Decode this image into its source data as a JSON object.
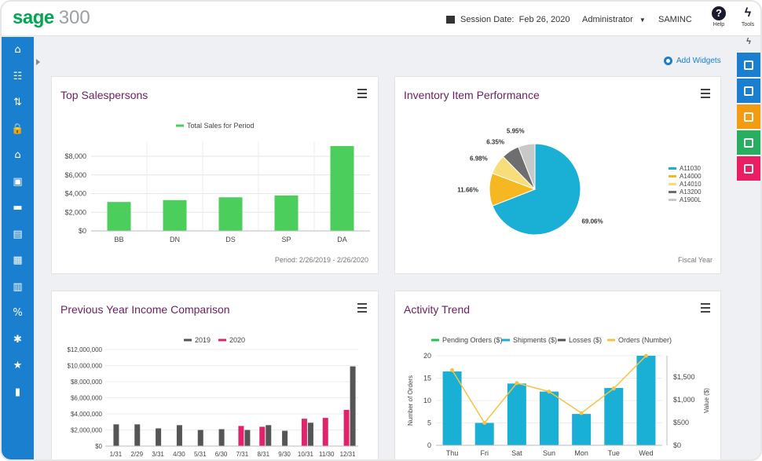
{
  "app": {
    "logo_brand": "sage",
    "logo_version": "300"
  },
  "header": {
    "session_label": "Session Date:",
    "session_date": "Feb 26, 2020",
    "user": "Administrator",
    "company": "SAMINC",
    "help_label": "Help",
    "tools_label": "Tools"
  },
  "sidebar": {
    "icons": [
      "home-icon",
      "data-entry-icon",
      "transfer-icon",
      "lock-icon",
      "bank-icon",
      "briefcase-icon",
      "folder-icon",
      "archive-icon",
      "document-icon",
      "ledger-icon",
      "percent-icon",
      "settings-star-icon",
      "star-icon",
      "bar-chart-icon"
    ]
  },
  "right_bar": {
    "buttons": [
      {
        "name": "screen-icon",
        "color": "#1b7fcf"
      },
      {
        "name": "screen-clock-icon",
        "color": "#1b7fcf"
      },
      {
        "name": "note-icon",
        "color": "#f39c12"
      },
      {
        "name": "sheet-icon",
        "color": "#27ae60"
      },
      {
        "name": "pen-icon",
        "color": "#e91e63"
      }
    ]
  },
  "add_widgets_label": "Add Widgets",
  "widgets": {
    "top_salespersons": {
      "title": "Top Salespersons",
      "footnote": "Period: 2/26/2019 - 2/26/2020"
    },
    "inventory": {
      "title": "Inventory Item Performance",
      "footnote": "Fiscal Year"
    },
    "income": {
      "title": "Previous Year Income Comparison"
    },
    "activity": {
      "title": "Activity Trend"
    }
  },
  "colors": {
    "sage_green": "#00a651",
    "brand_blue": "#1b7fcf",
    "title_purple": "#6b1f5e",
    "bar_green": "#4cce5c",
    "grey_series": "#555555",
    "pink_series": "#e0246c",
    "cyan": "#1ab0d6",
    "yellow": "#f5c342"
  },
  "chart_data": [
    {
      "type": "bar",
      "title": "",
      "legend": [
        "Total Sales for Period"
      ],
      "categories": [
        "BB",
        "DN",
        "DS",
        "SP",
        "DA"
      ],
      "series": [
        {
          "name": "Total Sales for Period",
          "values": [
            3100,
            3300,
            3600,
            3800,
            9100
          ],
          "color": "#4cce5c"
        }
      ],
      "yticks": [
        "$0",
        "$2,000",
        "$4,000",
        "$6,000",
        "$8,000"
      ],
      "ylim": [
        0,
        9600
      ],
      "legend_position": "top"
    },
    {
      "type": "pie",
      "slices": [
        {
          "label": "A11030",
          "value": 69.06,
          "text": "69.06%",
          "color": "#1ab0d6"
        },
        {
          "label": "A14000",
          "value": 11.66,
          "text": "11.66%",
          "color": "#f5b821"
        },
        {
          "label": "A14010",
          "value": 6.98,
          "text": "6.98%",
          "color": "#f9dd7a"
        },
        {
          "label": "A13200",
          "value": 6.35,
          "text": "6.35%",
          "color": "#6e6e6e"
        },
        {
          "label": "A1900L",
          "value": 5.95,
          "text": "5.95%",
          "color": "#c8c8c8"
        }
      ],
      "legend_position": "right"
    },
    {
      "type": "bar",
      "legend": [
        "2019",
        "2020"
      ],
      "categories": [
        "1/31",
        "2/29",
        "3/31",
        "4/30",
        "5/31",
        "6/30",
        "7/31",
        "8/31",
        "9/30",
        "10/31",
        "11/30",
        "12/31"
      ],
      "series": [
        {
          "name": "2019",
          "color": "#555555",
          "values": [
            2700000,
            2700000,
            2200000,
            2600000,
            2000000,
            2100000,
            2000000,
            2600000,
            1900000,
            2900000,
            null,
            9900000
          ]
        },
        {
          "name": "2020",
          "color": "#e0246c",
          "values": [
            null,
            null,
            null,
            null,
            null,
            null,
            2500000,
            2400000,
            null,
            3400000,
            3500000,
            4500000
          ]
        }
      ],
      "yticks": [
        "$0",
        "$2,000,000",
        "$4,000,000",
        "$6,000,000",
        "$8,000,000",
        "$10,000,000",
        "$12,000,000"
      ],
      "ylim": [
        0,
        12000000
      ],
      "legend_position": "top"
    },
    {
      "type": "bar",
      "legend": [
        "Pending Orders ($)",
        "Shipments ($)",
        "Losses ($)",
        "Orders (Number)"
      ],
      "legend_colors": [
        "#27c24c",
        "#1ab0d6",
        "#555555",
        "#f5c342"
      ],
      "categories": [
        "Thu",
        "Fri",
        "Sat",
        "Sun",
        "Mon",
        "Tue",
        "Wed"
      ],
      "bars": {
        "name": "Shipments ($)",
        "values": [
          16.5,
          5,
          13.8,
          12,
          7,
          12.8,
          20
        ]
      },
      "line": {
        "name": "Orders (Number)",
        "values": [
          16.8,
          5,
          13.9,
          12,
          7.2,
          12.7,
          20
        ]
      },
      "ylabel": "Number of Orders",
      "yticks": [
        "0",
        "5",
        "10",
        "15",
        "20"
      ],
      "ylim": [
        0,
        20
      ],
      "y2label": "Value ($)",
      "y2ticks": [
        "$0",
        "$500",
        "$1,000",
        "$1,500"
      ],
      "legend_position": "top"
    }
  ]
}
